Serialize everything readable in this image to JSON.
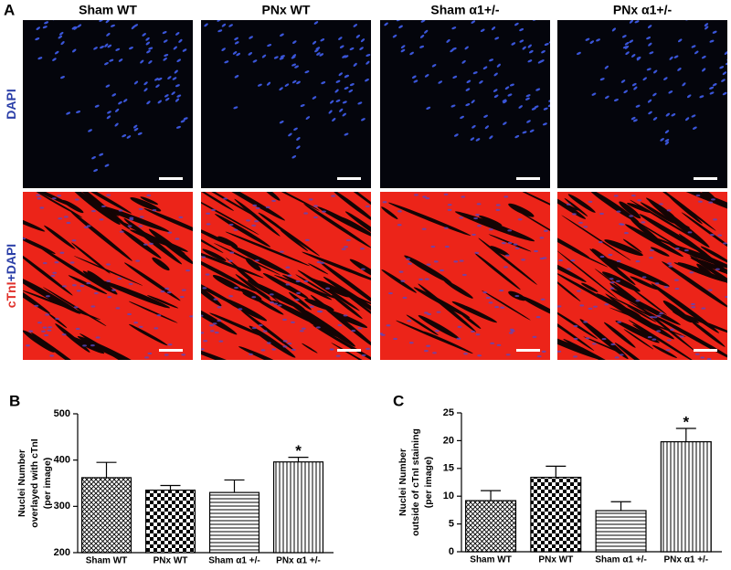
{
  "panel_a": {
    "label": "A",
    "columns": [
      "Sham WT",
      "PNx WT",
      "Sham α1+/-",
      "PNx α1+/-"
    ],
    "rows": [
      {
        "parts": [
          {
            "text": "DAPI",
            "color": "#2b3fa8"
          }
        ]
      },
      {
        "parts": [
          {
            "text": "cTnI",
            "color": "#e0302a"
          },
          {
            "text": "+DAPI",
            "color": "#2b3fa8"
          }
        ]
      }
    ]
  },
  "chart_data": [
    {
      "type": "bar",
      "panel_label": "B",
      "y_label": [
        "Nuclei Number",
        "overlayed with cTnI",
        "(per image)"
      ],
      "categories": [
        "Sham WT",
        "PNx WT",
        "Sham α1 +/-",
        "PNx α1 +/-"
      ],
      "values": [
        362,
        335,
        330,
        396
      ],
      "errors": [
        33,
        10,
        27,
        10
      ],
      "significance": [
        null,
        null,
        null,
        "*"
      ],
      "ylim": [
        200,
        500
      ],
      "yticks": [
        200,
        300,
        400,
        500
      ],
      "color": "#000000"
    },
    {
      "type": "bar",
      "panel_label": "C",
      "y_label": [
        "Nuclei Number",
        "outside of cTnI staining",
        "(per image)"
      ],
      "categories": [
        "Sham WT",
        "PNx WT",
        "Sham α1 +/-",
        "PNx α1 +/-"
      ],
      "values": [
        9.2,
        13.4,
        7.4,
        19.8
      ],
      "errors": [
        1.8,
        2.0,
        1.6,
        2.4
      ],
      "significance": [
        null,
        null,
        null,
        "*"
      ],
      "ylim": [
        0,
        25
      ],
      "yticks": [
        0,
        5,
        10,
        15,
        20,
        25
      ],
      "color": "#000000"
    }
  ]
}
